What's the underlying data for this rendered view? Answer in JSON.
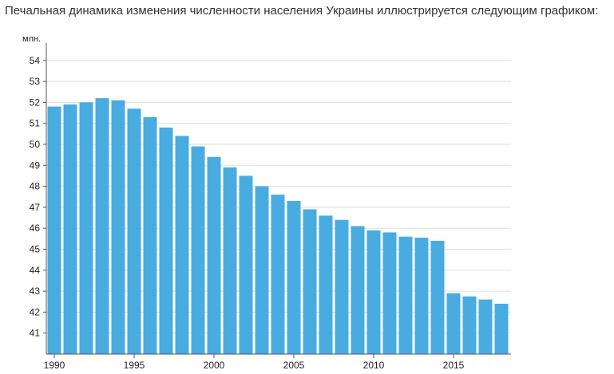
{
  "page": {
    "heading": "Печальная динамика изменения численности населения Украины иллюстрируется следующим графиком:"
  },
  "chart_data": {
    "type": "bar",
    "title": "",
    "xlabel": "",
    "ylabel": "млн.",
    "ylim": [
      40,
      54.6
    ],
    "xlim": [
      1989.5,
      2018.6
    ],
    "yticks": [
      41,
      42,
      43,
      44,
      45,
      46,
      47,
      48,
      49,
      50,
      51,
      52,
      53,
      54
    ],
    "xticks": [
      1990,
      1995,
      2000,
      2005,
      2010,
      2015
    ],
    "grid": true,
    "legend": "none",
    "bar_color": "#48ace0",
    "grid_color": "#dddddd",
    "axis_color": "#555555",
    "categories": [
      1990,
      1991,
      1992,
      1993,
      1994,
      1995,
      1996,
      1997,
      1998,
      1999,
      2000,
      2001,
      2002,
      2003,
      2004,
      2005,
      2006,
      2007,
      2008,
      2009,
      2010,
      2011,
      2012,
      2013,
      2014,
      2015,
      2016,
      2017,
      2018
    ],
    "values": [
      51.8,
      51.9,
      52.0,
      52.2,
      52.1,
      51.7,
      51.3,
      50.8,
      50.4,
      49.9,
      49.4,
      48.9,
      48.5,
      48.0,
      47.6,
      47.3,
      46.9,
      46.6,
      46.4,
      46.1,
      45.9,
      45.8,
      45.6,
      45.55,
      45.4,
      42.9,
      42.75,
      42.6,
      42.4
    ]
  }
}
